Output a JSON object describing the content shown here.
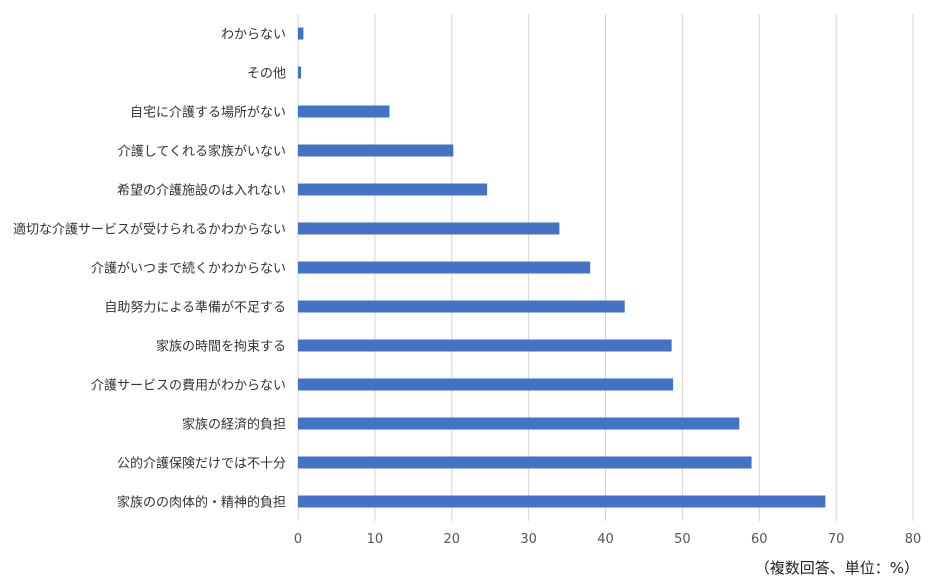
{
  "chart_data": {
    "type": "bar",
    "orientation": "horizontal",
    "categories": [
      "わからない",
      "その他",
      "自宅に介護する場所がない",
      "介護してくれる家族がいない",
      "希望の介護施設のは入れない",
      "適切な介護サービスが受けられるかわからない",
      "介護がいつまで続くかわからない",
      "自助努力による準備が不足する",
      "家族の時間を拘束する",
      "介護サービスの費用がわからない",
      "家族の経済的負担",
      "公的介護保険だけでは不十分",
      "家族のの肉体的・精神的負担"
    ],
    "values": [
      0.7,
      0.4,
      11.9,
      20.2,
      24.6,
      34.0,
      38.0,
      42.5,
      48.6,
      48.8,
      57.4,
      59.0,
      68.6
    ],
    "xlim": [
      0,
      80
    ],
    "xticks": [
      "0",
      "10",
      "20",
      "30",
      "40",
      "50",
      "60",
      "70",
      "80"
    ],
    "grid": true,
    "bar_color": "#4472C4",
    "unit_note": "（複数回答、単位：%）"
  }
}
